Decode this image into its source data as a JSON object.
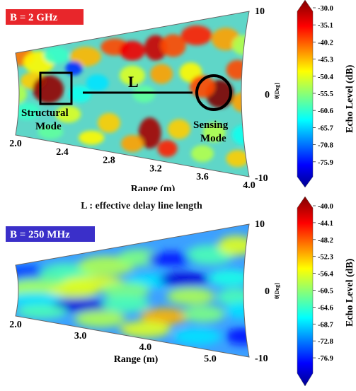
{
  "chart_data": [
    {
      "type": "heatmap",
      "projection": "polar-sector",
      "tag": "B = 2 GHz",
      "tag_color": "#e8262b",
      "xlabel": "Range (m)",
      "x_ticks": [
        "2.0",
        "2.4",
        "2.8",
        "3.2",
        "3.6",
        "4.0"
      ],
      "range_lim": [
        2.0,
        4.0
      ],
      "angle_ticks": [
        "10",
        "0",
        "-10"
      ],
      "angle_lim": [
        -10,
        10
      ],
      "angle_label": "θ[Deg]",
      "colorbar_label": "Echo Level (dB)",
      "colorbar_ticks": [
        "-30.0",
        "-35.1",
        "-40.2",
        "-45.3",
        "-50.4",
        "-55.5",
        "-60.6",
        "-65.7",
        "-70.8",
        "-75.9"
      ],
      "clim": [
        -78,
        -30
      ],
      "annotations": {
        "structural": "Structural\nMode",
        "sensing": "Sensing\nMode",
        "link_label": "L"
      },
      "approx_features": [
        {
          "range": 2.25,
          "angle": 1.0,
          "level": -32,
          "note": "structural mode hotspot"
        },
        {
          "range": 3.75,
          "angle": 0.0,
          "level": -30,
          "note": "sensing mode hotspot"
        },
        {
          "range": 3.15,
          "angle": -8.0,
          "level": -33
        },
        {
          "range": 3.15,
          "angle": 6.0,
          "level": -38
        },
        {
          "range": 2.55,
          "angle": 4.0,
          "level": -75
        },
        {
          "range": 2.05,
          "angle": 8.0,
          "level": -38
        }
      ]
    },
    {
      "type": "heatmap",
      "projection": "polar-sector",
      "tag": "B = 250 MHz",
      "tag_color": "#3a2fc9",
      "xlabel": "Range (m)",
      "x_ticks": [
        "2.0",
        "3.0",
        "4.0",
        "5.0"
      ],
      "range_lim": [
        2.0,
        5.6
      ],
      "angle_ticks": [
        "10",
        "0",
        "-10"
      ],
      "angle_lim": [
        -10,
        10
      ],
      "angle_label": "θ[Deg]",
      "colorbar_label": "Echo Level (dB)",
      "colorbar_ticks": [
        "-40.0",
        "-44.1",
        "-48.2",
        "-52.3",
        "-56.4",
        "-60.5",
        "-64.6",
        "-68.7",
        "-72.8",
        "-76.9"
      ],
      "clim": [
        -79,
        -40
      ],
      "approx_features": [
        {
          "range": 2.6,
          "angle": 0.0,
          "level": -60,
          "note": "central band"
        },
        {
          "range": 4.3,
          "angle": 2.0,
          "level": -72,
          "note": "dark band upper"
        },
        {
          "range": 4.3,
          "angle": -6.0,
          "level": -52
        },
        {
          "range": 3.0,
          "angle": -6.0,
          "level": -76
        }
      ]
    }
  ],
  "caption": "L : effective delay line length"
}
